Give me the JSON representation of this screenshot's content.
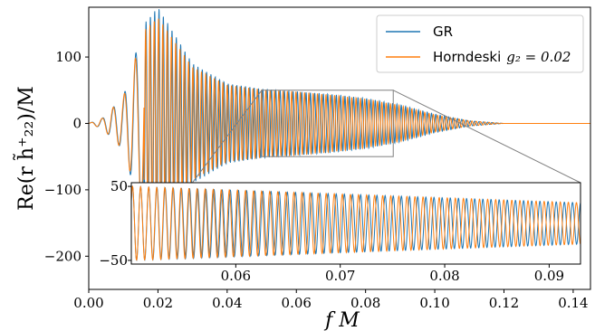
{
  "chart_data": {
    "type": "line",
    "xlabel": "f M",
    "ylabel": "Re(r h̃⁺₂₂)/M",
    "xlim": [
      0.0,
      0.145
    ],
    "ylim": [
      -250,
      175
    ],
    "xticks": [
      0.0,
      0.02,
      0.04,
      0.06,
      0.08,
      0.1,
      0.12,
      0.14
    ],
    "xtick_labels": [
      "0.00",
      "0.02",
      "0.04",
      "0.06",
      "0.08",
      "0.10",
      "0.12",
      "0.14"
    ],
    "yticks": [
      100,
      0,
      -100,
      -200
    ],
    "ytick_labels": [
      "100",
      "0",
      "−100",
      "−200"
    ],
    "grid": false,
    "legend_position": "top-right",
    "series": [
      {
        "name": "GR",
        "color": "#1f77b4",
        "description_points": [
          {
            "x": 0.0,
            "y": 0
          },
          {
            "x": 0.004,
            "y": 8
          },
          {
            "x": 0.01,
            "y": 40
          },
          {
            "x": 0.016,
            "y": 150
          },
          {
            "x": 0.02,
            "y": 175
          },
          {
            "x": 0.03,
            "y": 90
          },
          {
            "x": 0.04,
            "y": 60
          },
          {
            "x": 0.05,
            "y": 52
          },
          {
            "x": 0.06,
            "y": 48
          },
          {
            "x": 0.07,
            "y": 44
          },
          {
            "x": 0.08,
            "y": 38
          },
          {
            "x": 0.09,
            "y": 28
          },
          {
            "x": 0.1,
            "y": 14
          },
          {
            "x": 0.11,
            "y": 4
          },
          {
            "x": 0.12,
            "y": 0
          },
          {
            "x": 0.145,
            "y": 0
          }
        ]
      },
      {
        "name": "Horndeski g₂ = 0.02",
        "color": "#ff7f0e",
        "description_points": [
          {
            "x": 0.0,
            "y": 0
          },
          {
            "x": 0.004,
            "y": 8
          },
          {
            "x": 0.01,
            "y": 40
          },
          {
            "x": 0.016,
            "y": 140
          },
          {
            "x": 0.02,
            "y": 160
          },
          {
            "x": 0.03,
            "y": 85
          },
          {
            "x": 0.04,
            "y": 58
          },
          {
            "x": 0.05,
            "y": 51
          },
          {
            "x": 0.06,
            "y": 48
          },
          {
            "x": 0.07,
            "y": 43
          },
          {
            "x": 0.08,
            "y": 37
          },
          {
            "x": 0.09,
            "y": 27
          },
          {
            "x": 0.1,
            "y": 13
          },
          {
            "x": 0.11,
            "y": 4
          },
          {
            "x": 0.12,
            "y": 0
          },
          {
            "x": 0.145,
            "y": 0
          }
        ]
      }
    ],
    "zoom_box": {
      "x": [
        0.05,
        0.088
      ],
      "y": [
        -50,
        50
      ]
    },
    "inset": {
      "xlim": [
        0.05,
        0.093
      ],
      "ylim": [
        -55,
        55
      ],
      "xticks": [
        0.06,
        0.07,
        0.08,
        0.09
      ],
      "xtick_labels": [
        "0.06",
        "0.07",
        "0.08",
        "0.09"
      ],
      "yticks": [
        50,
        -50
      ],
      "ytick_labels": [
        "50",
        "−50"
      ],
      "amplitude_start": 50,
      "amplitude_end": 28
    }
  },
  "legend": {
    "gr_label": "GR",
    "horndeski_label": "Horndeski",
    "horndeski_param": "g₂ = 0.02"
  }
}
